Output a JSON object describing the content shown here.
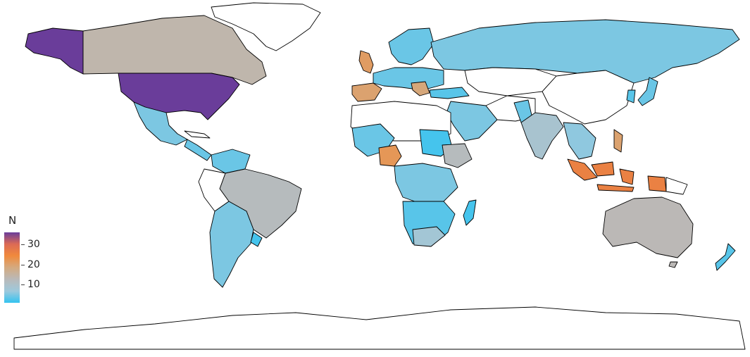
{
  "legend": {
    "title": "N",
    "ticks": [
      {
        "label": "30",
        "value": 30
      },
      {
        "label": "20",
        "value": 20
      },
      {
        "label": "10",
        "value": 10
      }
    ],
    "min": 1,
    "max": 36,
    "colors": [
      "#33c3f0",
      "#9ec9dc",
      "#b9b9b9",
      "#d4aa80",
      "#f08a3c",
      "#dc6a55",
      "#6a3d9a"
    ]
  },
  "regions": {
    "usa": {
      "n": 36
    },
    "canada": {
      "n": 14
    },
    "brazil": {
      "n": 12
    },
    "australia": {
      "n": 13
    },
    "indonesia": {
      "n": 26
    },
    "nigeria": {
      "n": 22
    },
    "united_kingdom": {
      "n": 21
    },
    "spain": {
      "n": 20
    },
    "india": {
      "n": 9
    },
    "russia": {
      "n": 5
    },
    "argentina": {
      "n": 5
    },
    "mexico": {
      "n": 5
    },
    "ethiopia": {
      "n": 12
    },
    "south_africa": {
      "n": 8
    },
    "sudan": {
      "n": 2
    },
    "philippines": {
      "n": 20
    },
    "new_zealand": {
      "n": 3
    },
    "madagascar": {
      "n": 2
    }
  }
}
